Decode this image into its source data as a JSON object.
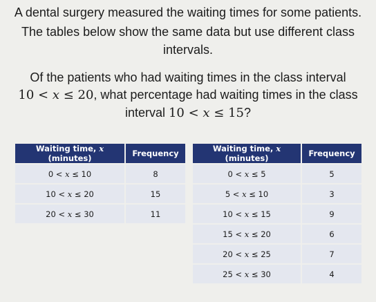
{
  "question": {
    "line1": "A dental surgery measured the waiting times for some patients.",
    "line2": "The tables below show the same data but use different class",
    "line3": "intervals.",
    "line4": "Of the patients who had waiting times in the class interval",
    "line5_math": {
      "low": "10",
      "var": "x",
      "high": "20"
    },
    "line5_rest": ", what percentage had waiting times in the class",
    "line6_prefix": "interval ",
    "line6_math": {
      "low": "10",
      "var": "x",
      "high": "15"
    },
    "line6_suffix": "?"
  },
  "table1": {
    "headers": {
      "col1": "Waiting time, x (minutes)",
      "col2": "Frequency"
    },
    "rows": [
      {
        "low": "0",
        "high": "10",
        "freq": "8"
      },
      {
        "low": "10",
        "high": "20",
        "freq": "15"
      },
      {
        "low": "20",
        "high": "30",
        "freq": "11"
      }
    ]
  },
  "table2": {
    "headers": {
      "col1": "Waiting time, x (minutes)",
      "col2": "Frequency"
    },
    "rows": [
      {
        "low": "0",
        "high": "5",
        "freq": "5"
      },
      {
        "low": "5",
        "high": "10",
        "freq": "3"
      },
      {
        "low": "10",
        "high": "15",
        "freq": "9"
      },
      {
        "low": "15",
        "high": "20",
        "freq": "6"
      },
      {
        "low": "20",
        "high": "25",
        "freq": "7"
      },
      {
        "low": "25",
        "high": "30",
        "freq": "4"
      }
    ]
  },
  "colors": {
    "header_bg": "#233573",
    "cell_bg": "#e4e7ef",
    "page_bg": "#efefec"
  }
}
